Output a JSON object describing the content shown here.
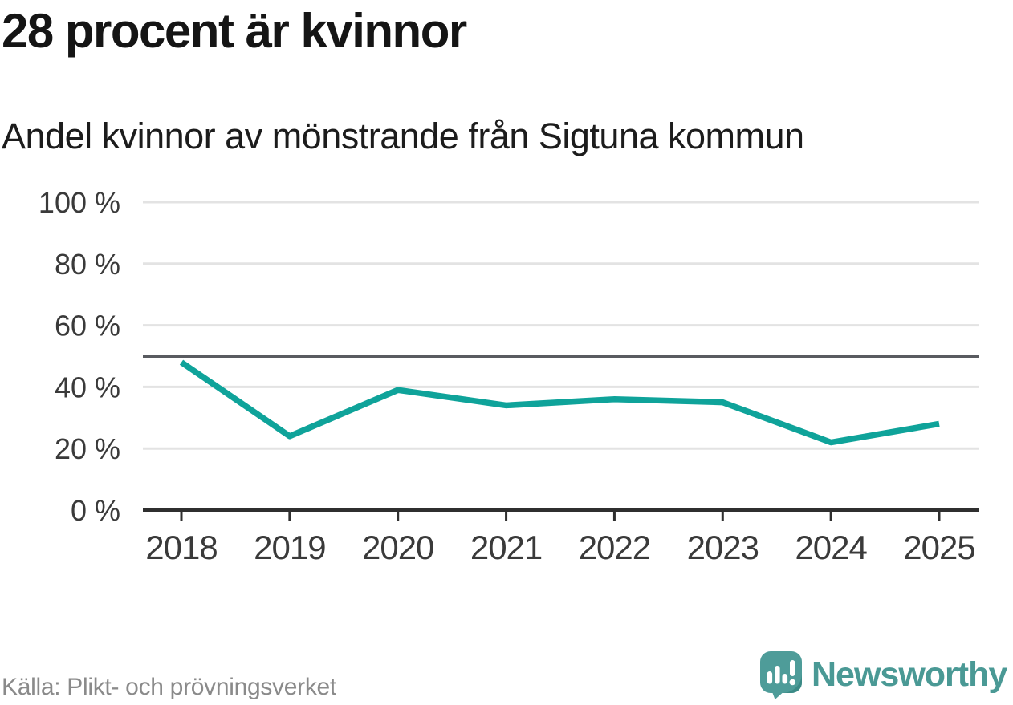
{
  "header": {
    "title": "28 procent är kvinnor",
    "subtitle": "Andel kvinnor av mönstrande från Sigtuna kommun"
  },
  "chart_data": {
    "type": "line",
    "title": "Andel kvinnor av mönstrande från Sigtuna kommun",
    "categories": [
      "2018",
      "2019",
      "2020",
      "2021",
      "2022",
      "2023",
      "2024",
      "2025"
    ],
    "series": [
      {
        "name": "Andel kvinnor",
        "values": [
          48,
          24,
          39,
          34,
          36,
          35,
          22,
          28
        ]
      }
    ],
    "unit": "%",
    "xlabel": "",
    "ylabel": "",
    "ylim": [
      0,
      100
    ],
    "y_ticks": [
      {
        "value": 100,
        "label": "100 %"
      },
      {
        "value": 80,
        "label": "80 %"
      },
      {
        "value": 60,
        "label": "60 %"
      },
      {
        "value": 40,
        "label": "40 %"
      },
      {
        "value": 20,
        "label": "20 %"
      },
      {
        "value": 0,
        "label": "0 %"
      }
    ],
    "reference_line": {
      "value": 50
    },
    "grid": true,
    "legend": false
  },
  "footer": {
    "source": "Källa: Plikt- och prövningsverket",
    "brand": "Newsworthy"
  },
  "colors": {
    "line": "#0fa39a",
    "reference_line": "#595b60",
    "gridline": "#e3e3e3",
    "axis": "#2f2f2f",
    "tick": "#2f2f2f",
    "axis_text": "#3a3a3a",
    "title_text": "#151515",
    "source_text": "#8a8a8a",
    "brand_teal": "#4a9995",
    "brand_icon": "#4e9c99",
    "brand_icon_shade": "#3b8a86"
  },
  "icons": {
    "brand_logo": "newsworthy-bubble-barchart-icon"
  }
}
